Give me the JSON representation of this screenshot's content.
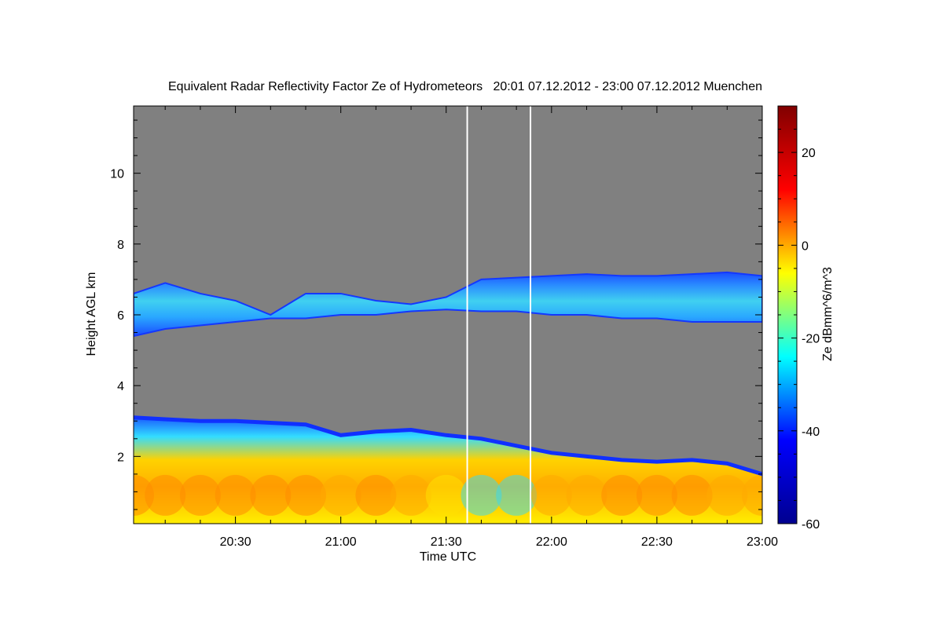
{
  "chart_data": {
    "type": "heatmap",
    "title": "Equivalent Radar Reflectivity Factor Ze of Hydrometeors   20:01 07.12.2012 - 23:00 07.12.2012 Muenchen",
    "xlabel": "Time UTC",
    "ylabel": "Height AGL km",
    "xlim": [
      "20:01",
      "23:00"
    ],
    "ylim": [
      0.1,
      11.9
    ],
    "x_ticks": [
      {
        "label": "20:30",
        "value": "20:30"
      },
      {
        "label": "21:00",
        "value": "21:00"
      },
      {
        "label": "21:30",
        "value": "21:30"
      },
      {
        "label": "22:00",
        "value": "22:00"
      },
      {
        "label": "22:30",
        "value": "22:30"
      },
      {
        "label": "23:00",
        "value": "23:00"
      }
    ],
    "y_ticks": [
      {
        "label": "2",
        "value": 2
      },
      {
        "label": "4",
        "value": 4
      },
      {
        "label": "6",
        "value": 6
      },
      {
        "label": "8",
        "value": 8
      },
      {
        "label": "10",
        "value": 10
      }
    ],
    "colorbar": {
      "label": "Ze dBmm^6/m^3",
      "range": [
        -60,
        30
      ],
      "ticks": [
        {
          "label": "20",
          "value": 20
        },
        {
          "label": "0",
          "value": 0
        },
        {
          "label": "-20",
          "value": -20
        },
        {
          "label": "-40",
          "value": -40
        },
        {
          "label": "-60",
          "value": -60
        }
      ],
      "colormap": [
        "#00008f",
        "#0000ff",
        "#00ffff",
        "#ffff00",
        "#ff0000",
        "#800000"
      ]
    },
    "background_color": "#808080",
    "missing_data_times": [
      "21:36",
      "21:54"
    ],
    "upper_layer": {
      "description_colors": [
        "#1e6fff",
        "#3fbfff"
      ],
      "times": [
        "20:01",
        "20:10",
        "20:20",
        "20:30",
        "20:40",
        "20:50",
        "21:00",
        "21:10",
        "21:20",
        "21:30",
        "21:40",
        "21:50",
        "22:00",
        "22:10",
        "22:20",
        "22:30",
        "22:40",
        "22:50",
        "23:00"
      ],
      "bottom": [
        5.4,
        5.6,
        5.7,
        5.8,
        5.9,
        5.9,
        6.0,
        6.0,
        6.1,
        6.15,
        6.1,
        6.1,
        6.0,
        6.0,
        5.9,
        5.9,
        5.8,
        5.8,
        5.8
      ],
      "top": [
        6.6,
        6.9,
        6.6,
        6.4,
        6.0,
        6.6,
        6.6,
        6.4,
        6.3,
        6.5,
        7.0,
        7.05,
        7.1,
        7.15,
        7.1,
        7.1,
        7.15,
        7.2,
        7.1
      ]
    },
    "lower_layer": {
      "times": [
        "20:01",
        "20:10",
        "20:20",
        "20:30",
        "20:40",
        "20:50",
        "21:00",
        "21:10",
        "21:20",
        "21:30",
        "21:40",
        "21:50",
        "22:00",
        "22:10",
        "22:20",
        "22:30",
        "22:40",
        "22:50",
        "23:00"
      ],
      "top": [
        3.1,
        3.05,
        3.0,
        3.0,
        2.95,
        2.9,
        2.6,
        2.7,
        2.75,
        2.6,
        2.5,
        2.3,
        2.1,
        2.0,
        1.9,
        1.85,
        1.9,
        1.8,
        1.5
      ],
      "core_dbz": [
        5,
        8,
        10,
        10,
        8,
        5,
        2,
        5,
        0,
        -10,
        -20,
        -15,
        -5,
        0,
        5,
        8,
        5,
        0,
        -5
      ]
    }
  }
}
